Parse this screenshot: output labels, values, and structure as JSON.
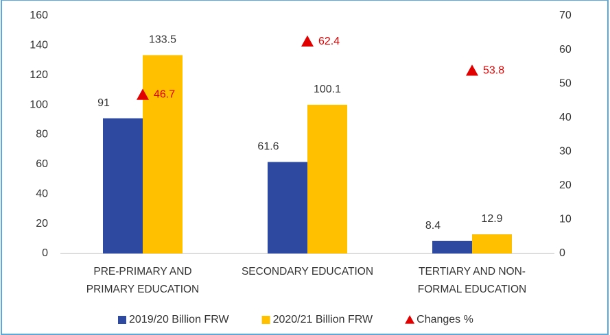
{
  "chart_data": {
    "type": "bar",
    "categories": [
      "PRE-PRIMARY AND PRIMARY EDUCATION",
      "SECONDARY EDUCATION",
      "TERTIARY AND NON-FORMAL EDUCATION"
    ],
    "series": [
      {
        "name": "2019/20 Billion FRW",
        "color": "#2e4aa0",
        "values": [
          91,
          61.6,
          8.4
        ]
      },
      {
        "name": "2020/21 Billion FRW",
        "color": "#ffc000",
        "values": [
          133.5,
          100.1,
          12.9
        ]
      },
      {
        "name": "Changes %",
        "color": "#e00000",
        "type": "scatter",
        "axis": "y2",
        "values": [
          46.7,
          62.4,
          53.8
        ]
      }
    ],
    "ylim": [
      0,
      160
    ],
    "yticks": [
      0,
      20,
      40,
      60,
      80,
      100,
      120,
      140,
      160
    ],
    "y2lim": [
      0,
      70
    ],
    "y2ticks": [
      0,
      10,
      20,
      30,
      40,
      50,
      60,
      70
    ],
    "grid": false,
    "legend": "bottom"
  }
}
